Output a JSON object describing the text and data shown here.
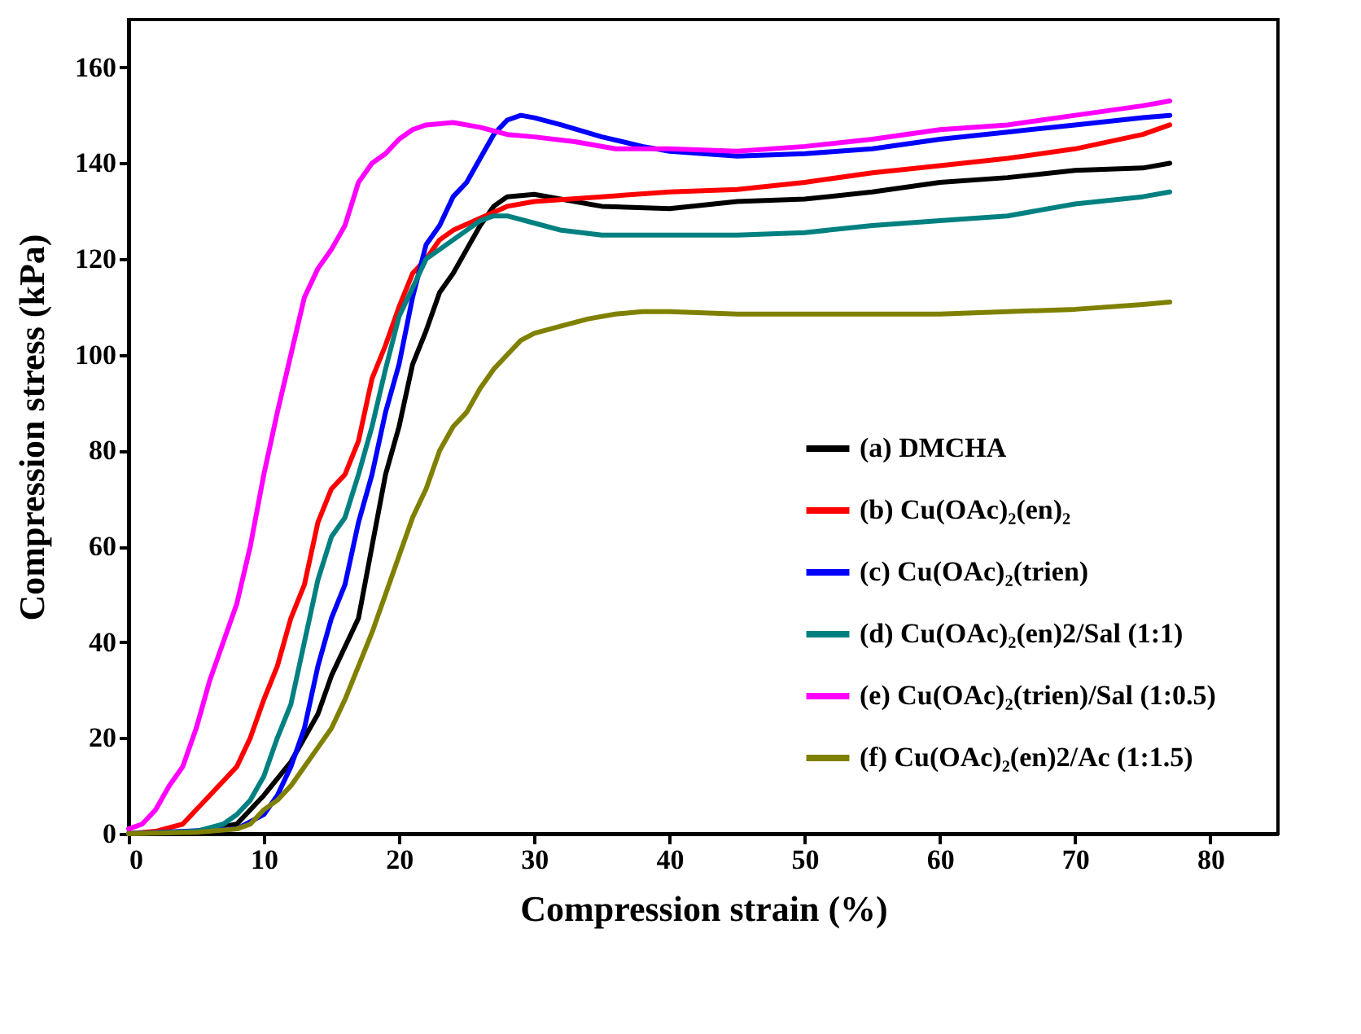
{
  "chart_data": {
    "type": "line",
    "xlabel": "Compression strain (%)",
    "ylabel": "Compression stress (kPa)",
    "xlim": [
      0,
      85
    ],
    "xticks": [
      0,
      10,
      20,
      30,
      40,
      50,
      60,
      70,
      80
    ],
    "ylim": [
      0,
      170
    ],
    "yticks": [
      0,
      20,
      40,
      60,
      80,
      100,
      120,
      140,
      160
    ],
    "grid": false,
    "legend": "bottom right",
    "marker": "none",
    "line_style": "solid",
    "series": [
      {
        "name": "(a) DMCHA",
        "color": "#000000",
        "x": [
          0,
          5,
          8,
          10,
          12,
          14,
          15,
          17,
          18,
          19,
          20,
          21,
          22,
          23,
          24,
          25,
          26,
          27,
          28,
          30,
          35,
          40,
          45,
          50,
          55,
          60,
          65,
          70,
          75,
          77
        ],
        "values": [
          0,
          0.5,
          2,
          8,
          15,
          25,
          33,
          45,
          60,
          75,
          85,
          98,
          105,
          113,
          117,
          122,
          127,
          131,
          133,
          133.5,
          131,
          130.5,
          132,
          132.5,
          134,
          136,
          137,
          138.5,
          139,
          140
        ]
      },
      {
        "name": "(b) Cu(OAc)₂(en)₂",
        "color": "#ff0000",
        "x": [
          0,
          2,
          4,
          6,
          8,
          9,
          10,
          11,
          12,
          13,
          14,
          15,
          16,
          17,
          18,
          19,
          20,
          21,
          22,
          23,
          24,
          26,
          28,
          30,
          35,
          40,
          45,
          50,
          55,
          60,
          65,
          70,
          75,
          77
        ],
        "values": [
          0,
          0.5,
          2,
          8,
          14,
          20,
          28,
          35,
          45,
          52,
          65,
          72,
          75,
          82,
          95,
          102,
          110,
          117,
          120,
          124,
          126,
          128.5,
          131,
          132,
          133,
          134,
          134.5,
          136,
          138,
          139.5,
          141,
          143,
          146,
          148
        ]
      },
      {
        "name": "(c) Cu(OAc)₂(trien)",
        "color": "#0000ff",
        "x": [
          0,
          8,
          10,
          11,
          12,
          13,
          14,
          15,
          16,
          17,
          18,
          19,
          20,
          21,
          22,
          23,
          24,
          25,
          26,
          27,
          28,
          29,
          30,
          32,
          35,
          38,
          40,
          45,
          50,
          55,
          60,
          65,
          70,
          75,
          77
        ],
        "values": [
          0,
          1,
          4,
          8,
          14,
          22,
          35,
          45,
          52,
          65,
          75,
          88,
          98,
          112,
          123,
          127,
          133,
          136,
          141,
          146,
          149,
          150,
          149.5,
          148,
          145.5,
          143.5,
          142.5,
          141.5,
          142,
          143,
          145,
          146.5,
          148,
          149.5,
          150
        ]
      },
      {
        "name": "(d) Cu(OAc)₂(en)2/Sal (1:1)",
        "color": "#008080",
        "x": [
          0,
          5,
          7,
          8,
          9,
          10,
          11,
          12,
          13,
          14,
          15,
          16,
          17,
          18,
          19,
          20,
          21,
          22,
          23,
          24,
          25,
          26,
          27,
          28,
          30,
          32,
          35,
          40,
          45,
          50,
          55,
          60,
          65,
          70,
          75,
          77
        ],
        "values": [
          0,
          0.5,
          2,
          4,
          7,
          12,
          20,
          27,
          40,
          53,
          62,
          66,
          75,
          85,
          97,
          108,
          114,
          120,
          122,
          124,
          126,
          128,
          129,
          129,
          127.5,
          126,
          125,
          125,
          125,
          125.5,
          127,
          128,
          129,
          131.5,
          133,
          134
        ]
      },
      {
        "name": "(e) Cu(OAc)₂(trien)/Sal (1:0.5)",
        "color": "#ff00ff",
        "x": [
          0,
          1,
          2,
          3,
          4,
          5,
          6,
          7,
          8,
          9,
          10,
          11,
          12,
          13,
          14,
          15,
          16,
          17,
          18,
          19,
          20,
          21,
          22,
          24,
          26,
          28,
          30,
          33,
          36,
          40,
          45,
          50,
          55,
          60,
          65,
          70,
          75,
          77
        ],
        "values": [
          1,
          2,
          5,
          10,
          14,
          22,
          32,
          40,
          48,
          60,
          75,
          88,
          100,
          112,
          118,
          122,
          127,
          136,
          140,
          142,
          145,
          147,
          148,
          148.5,
          147.5,
          146,
          145.5,
          144.5,
          143,
          143,
          142.5,
          143.5,
          145,
          147,
          148,
          150,
          152,
          153
        ]
      },
      {
        "name": "(f) Cu(OAc)₂(en)2/Ac (1:1.5)",
        "color": "#808000",
        "x": [
          0,
          5,
          8,
          9,
          10,
          11,
          12,
          13,
          14,
          15,
          16,
          17,
          18,
          19,
          20,
          21,
          22,
          23,
          24,
          25,
          26,
          27,
          28,
          29,
          30,
          32,
          34,
          36,
          38,
          40,
          45,
          50,
          55,
          60,
          65,
          70,
          75,
          77
        ],
        "values": [
          0,
          0.3,
          1,
          2,
          5,
          7,
          10,
          14,
          18,
          22,
          28,
          35,
          42,
          50,
          58,
          66,
          72,
          80,
          85,
          88,
          93,
          97,
          100,
          103,
          104.5,
          106,
          107.5,
          108.5,
          109,
          109,
          108.5,
          108.5,
          108.5,
          108.5,
          109,
          109.5,
          110.5,
          111
        ]
      }
    ]
  }
}
